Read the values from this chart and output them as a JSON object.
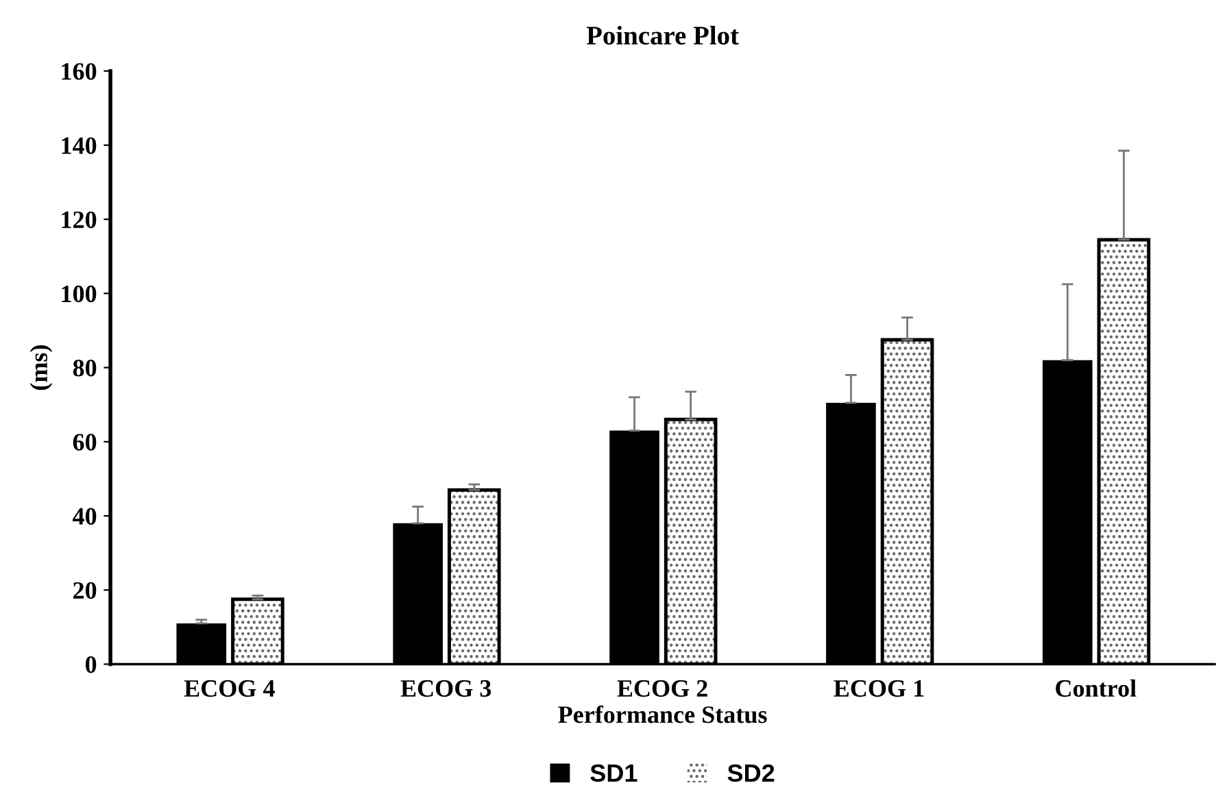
{
  "chart_data": {
    "type": "bar",
    "title": "Poincare Plot",
    "xlabel": "Performance Status",
    "ylabel": "(ms)",
    "categories": [
      "ECOG 4",
      "ECOG 3",
      "ECOG 2",
      "ECOG 1",
      "Control"
    ],
    "series": [
      {
        "name": "SD1",
        "color": "#000000",
        "values": [
          11,
          38,
          63,
          70.5,
          82
        ],
        "errors": [
          [
            11,
            12
          ],
          [
            38,
            42.5
          ],
          [
            63,
            72
          ],
          [
            70.5,
            78
          ],
          [
            82,
            102.5
          ]
        ]
      },
      {
        "name": "SD2",
        "color": "#ffffff",
        "values": [
          17.5,
          47,
          66,
          87.5,
          114.5
        ],
        "errors": [
          [
            17.5,
            18.5
          ],
          [
            47,
            48.5
          ],
          [
            66,
            73.5
          ],
          [
            87.5,
            93.5
          ],
          [
            114.5,
            138.5
          ]
        ]
      }
    ],
    "ylim": [
      0,
      160
    ],
    "yticks": [
      0,
      20,
      40,
      60,
      80,
      100,
      120,
      140,
      160
    ],
    "grid": false,
    "legend": "bottom"
  }
}
